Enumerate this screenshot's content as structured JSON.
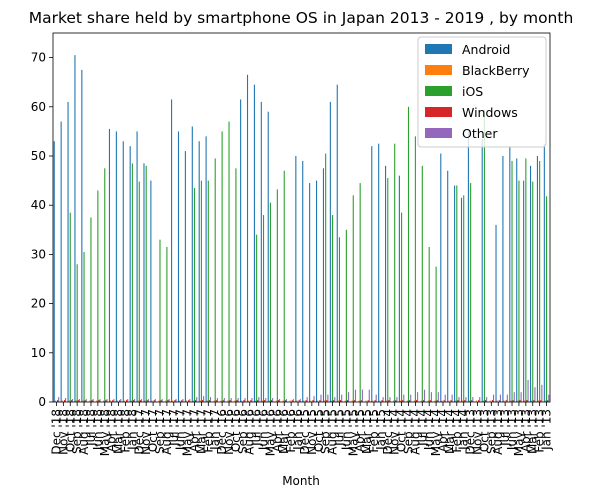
{
  "chart_data": {
    "type": "bar",
    "title": "Market share held by smartphone OS in Japan 2013 - 2019 , by month",
    "xlabel": "Month",
    "ylabel": "",
    "ylim": [
      0,
      75
    ],
    "yticks": [
      0,
      10,
      20,
      30,
      40,
      50,
      60,
      70
    ],
    "legend_position": "top-right",
    "categories": [
      "Dec '18",
      "Nov '18",
      "Oct '18",
      "Sep '18",
      "Aug '18",
      "Jul '18",
      "Jun '18",
      "May '18",
      "Apr '18",
      "Mar '18",
      "Feb '18",
      "Jan '18",
      "Dec '17",
      "Nov '17",
      "Oct '17",
      "Sep '17",
      "Aug '17",
      "Jul '17",
      "Jun '17",
      "May '17",
      "Apr '17",
      "Mar '17",
      "Feb '17",
      "Jan '17",
      "Dec '16",
      "Nov '16",
      "Oct '16",
      "Sep '16",
      "Aug '16",
      "Jul '16",
      "Jun '16",
      "May '16",
      "Apr '16",
      "Mar '16",
      "Feb '16",
      "Jan '16",
      "Dec '15",
      "Nov '15",
      "Oct '15",
      "Sep '15",
      "Aug '15",
      "Jul '15",
      "Jun '15",
      "May '15",
      "Apr '15",
      "Mar '15",
      "Feb '15",
      "Jan '15",
      "Dec '14",
      "Nov '14",
      "Oct '14",
      "Sep '14",
      "Aug '14",
      "Jul '14",
      "Jun '14",
      "May '14",
      "Apr '14",
      "Mar '14",
      "Feb '14",
      "Jan '14",
      "Dec '13",
      "Nov '13",
      "Oct '13",
      "Sep '13",
      "Aug '13",
      "Jul '13",
      "Jun '13",
      "May '13",
      "Apr '13",
      "Mar '13",
      "Feb '13",
      "Jan '13"
    ],
    "visible_tick_labels": [
      "Dec '18",
      "Nov '18",
      "Oct '18",
      "Sep '18",
      "Aug '18",
      "Jul '18",
      "Jun '18",
      "May '18",
      "Apr '18",
      "Mar '18",
      "Feb '18",
      "Jan '18",
      "Dec '17",
      "Nov '17",
      "Oct '17",
      "Sep '17",
      "Aug '17",
      "Jul '17",
      "Jun '17",
      "May '17",
      "Apr '17",
      "Mar '17",
      "Feb '17",
      "Jan '17",
      "Dec '16",
      "Nov '16",
      "Oct '16",
      "Sep '16",
      "Aug '16",
      "Jul '16",
      "Jun '16",
      "May '16",
      "Apr '16",
      "Mar '16",
      "Feb '16",
      "Jan '16",
      "Dec '15",
      "Nov '15",
      "Oct '15",
      "Sep '15",
      "Aug '15",
      "Jul '15",
      "Jun '15",
      "May '15",
      "Apr '15",
      "Mar '15",
      "Feb '15",
      "Jan '15",
      "Dec '14",
      "Nov '14",
      "Oct '14",
      "Sep '14",
      "Aug '14",
      "Jul '14",
      "Jun '14",
      "May '14",
      "Apr '14",
      "Mar '14",
      "Feb '14",
      "Jan '14",
      "Dec '13",
      "Nov '13",
      "Oct '13",
      "Sep '13",
      "Aug '13",
      "Jul '13",
      "Jun '13",
      "May '13",
      "Apr '13",
      "Mar '13",
      "Feb '13",
      "Jan '13"
    ],
    "series": [
      {
        "name": "Android",
        "color": "#1f77b4",
        "values": [
          53,
          57,
          61,
          70.5,
          67.5,
          null,
          null,
          null,
          55.5,
          55,
          53,
          52,
          55,
          48.5,
          45,
          null,
          null,
          61.5,
          55,
          51,
          56,
          53,
          54,
          null,
          null,
          null,
          null,
          61.5,
          66.5,
          64.5,
          61,
          59,
          null,
          null,
          null,
          50,
          49,
          44.5,
          45,
          47.5,
          61,
          64.5,
          null,
          null,
          null,
          null,
          52,
          52.5,
          48,
          null,
          46,
          null,
          null,
          null,
          null,
          null,
          50.5,
          47,
          44,
          41.5,
          55,
          null,
          53.5,
          null,
          36,
          50,
          52,
          49.5,
          45,
          48,
          50,
          52.5
        ]
      },
      {
        "name": "BlackBerry",
        "color": "#ff7f0e",
        "values": [
          0.3,
          0.3,
          0.3,
          0.3,
          0.3,
          0.3,
          0.3,
          0.3,
          0.3,
          0.3,
          0.3,
          0.3,
          0.3,
          0.3,
          0.3,
          0.3,
          0.3,
          0.3,
          0.3,
          0.3,
          0.3,
          0.3,
          0.3,
          0.3,
          0.3,
          0.3,
          0.3,
          0.3,
          0.3,
          0.3,
          0.3,
          0.3,
          0.3,
          0.3,
          0.3,
          0.3,
          0.3,
          0.3,
          0.3,
          0.3,
          0.3,
          0.3,
          0.3,
          0.3,
          0.3,
          0.3,
          0.3,
          0.3,
          0.3,
          0.3,
          0.3,
          0.3,
          0.3,
          0.3,
          0.3,
          0.3,
          0.3,
          0.3,
          0.3,
          0.3,
          0.3,
          0.3,
          0.3,
          0.3,
          0.3,
          0.3,
          0.3,
          0.3,
          0.3,
          0.3,
          0.3,
          0.3
        ]
      },
      {
        "name": "iOS",
        "color": "#2ca02c",
        "values": [
          null,
          null,
          38.5,
          28,
          30.5,
          37.5,
          43,
          47.5,
          null,
          null,
          null,
          48.5,
          44.8,
          48,
          null,
          33,
          31.5,
          null,
          null,
          null,
          43.5,
          45,
          45,
          49.5,
          55,
          57,
          47.5,
          null,
          null,
          34,
          38,
          40.5,
          43.2,
          47,
          null,
          null,
          null,
          null,
          null,
          50.5,
          38,
          33.5,
          35,
          42,
          44.5,
          null,
          null,
          null,
          45.5,
          52.5,
          38.5,
          60,
          54,
          48,
          31.5,
          27.5,
          null,
          null,
          44,
          42,
          44.5,
          null,
          59.5,
          null,
          null,
          null,
          49,
          45,
          49.5,
          44.8,
          49,
          41.8
        ]
      },
      {
        "name": "Windows",
        "color": "#d62728",
        "values": [
          0.4,
          0.4,
          0.4,
          0.4,
          0.4,
          0.4,
          0.4,
          0.4,
          0.4,
          0.4,
          0.4,
          0.4,
          0.4,
          0.4,
          0.4,
          0.4,
          0.4,
          0.4,
          0.4,
          0.4,
          0.4,
          0.4,
          0.4,
          0.4,
          0.4,
          0.4,
          0.4,
          0.4,
          0.4,
          0.4,
          0.4,
          0.4,
          0.4,
          0.4,
          0.4,
          0.4,
          0.4,
          0.4,
          0.4,
          0.4,
          0.4,
          0.4,
          0.4,
          0.4,
          0.4,
          0.4,
          0.4,
          0.4,
          0.4,
          0.4,
          0.4,
          0.4,
          0.4,
          0.4,
          0.4,
          0.4,
          0.4,
          0.4,
          0.4,
          0.4,
          0.4,
          0.4,
          0.4,
          0.4,
          0.4,
          0.4,
          0.4,
          0.4,
          0.4,
          0.4,
          0.4,
          0.4
        ]
      },
      {
        "name": "Other",
        "color": "#9467bd",
        "values": [
          1,
          0.8,
          0.6,
          0.6,
          0.6,
          0.6,
          0.6,
          0.6,
          0.6,
          0.6,
          0.6,
          0.6,
          0.6,
          0.6,
          0.6,
          0.6,
          0.6,
          0.6,
          0.6,
          0.6,
          1,
          1.2,
          1,
          0.8,
          0.8,
          0.8,
          0.8,
          0.8,
          0.8,
          1,
          0.8,
          0.8,
          0.6,
          0.6,
          0.6,
          0.6,
          1,
          1.2,
          1.5,
          1.5,
          1,
          1.5,
          2,
          2.5,
          2.5,
          2.5,
          1.5,
          1,
          1,
          1,
          1.5,
          1.5,
          2,
          2.5,
          2,
          2,
          1.5,
          1.5,
          1,
          1,
          1,
          1,
          1,
          1.5,
          1.5,
          1.5,
          2,
          2,
          4.5,
          3,
          3.5,
          1.5
        ]
      }
    ]
  }
}
